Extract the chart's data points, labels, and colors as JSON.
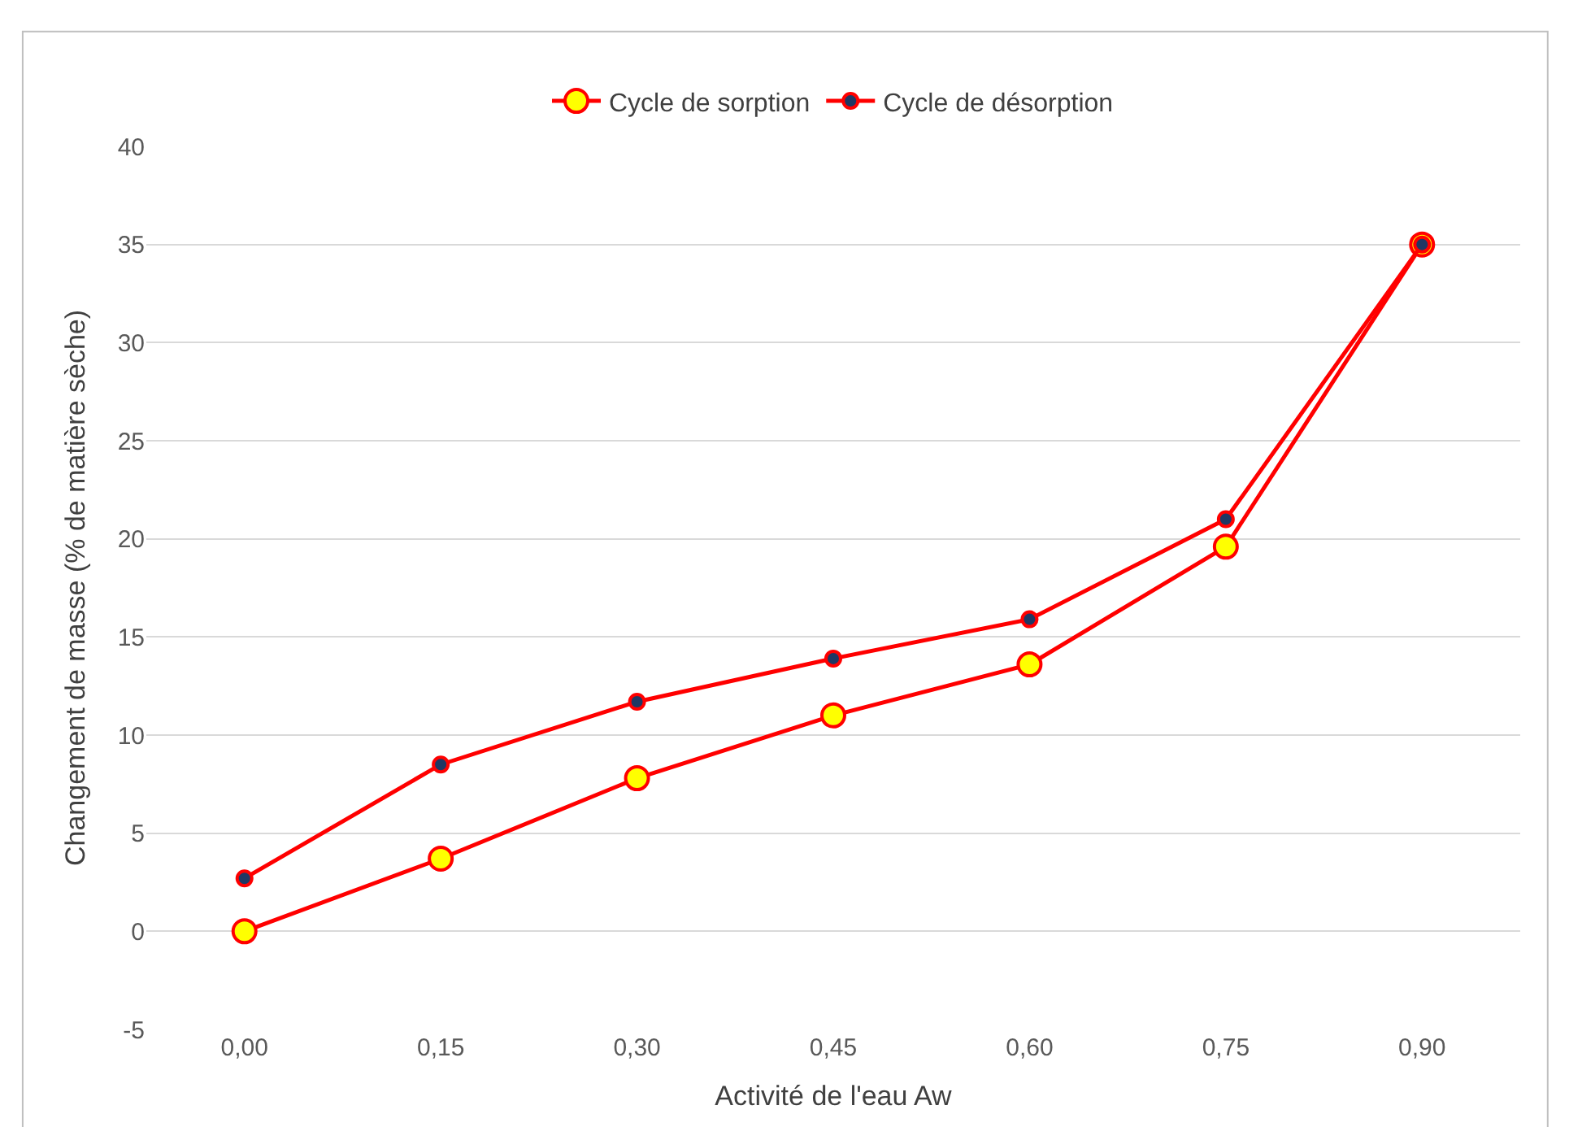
{
  "chart_data": {
    "type": "line",
    "xlabel": "Activité de l'eau Aw",
    "ylabel": "Changement de masse (% de matière sèche)",
    "categories": [
      "0,00",
      "0,15",
      "0,30",
      "0,45",
      "0,60",
      "0,75",
      "0,90"
    ],
    "series": [
      {
        "name": "Cycle de sorption",
        "color": "#ff0000",
        "values": [
          0,
          3.7,
          7.8,
          11.0,
          13.6,
          19.6,
          35.0
        ]
      },
      {
        "name": "Cycle de désorption",
        "color": "#ff0000",
        "values": [
          2.7,
          8.5,
          11.7,
          13.9,
          15.9,
          21.0,
          35.0
        ]
      }
    ],
    "ylim": [
      -5,
      40
    ],
    "yticks": [
      -5,
      0,
      5,
      10,
      15,
      20,
      25,
      30,
      35,
      40
    ],
    "grid": "y",
    "legend": "top",
    "marker": "circle",
    "line_style": "solid"
  }
}
